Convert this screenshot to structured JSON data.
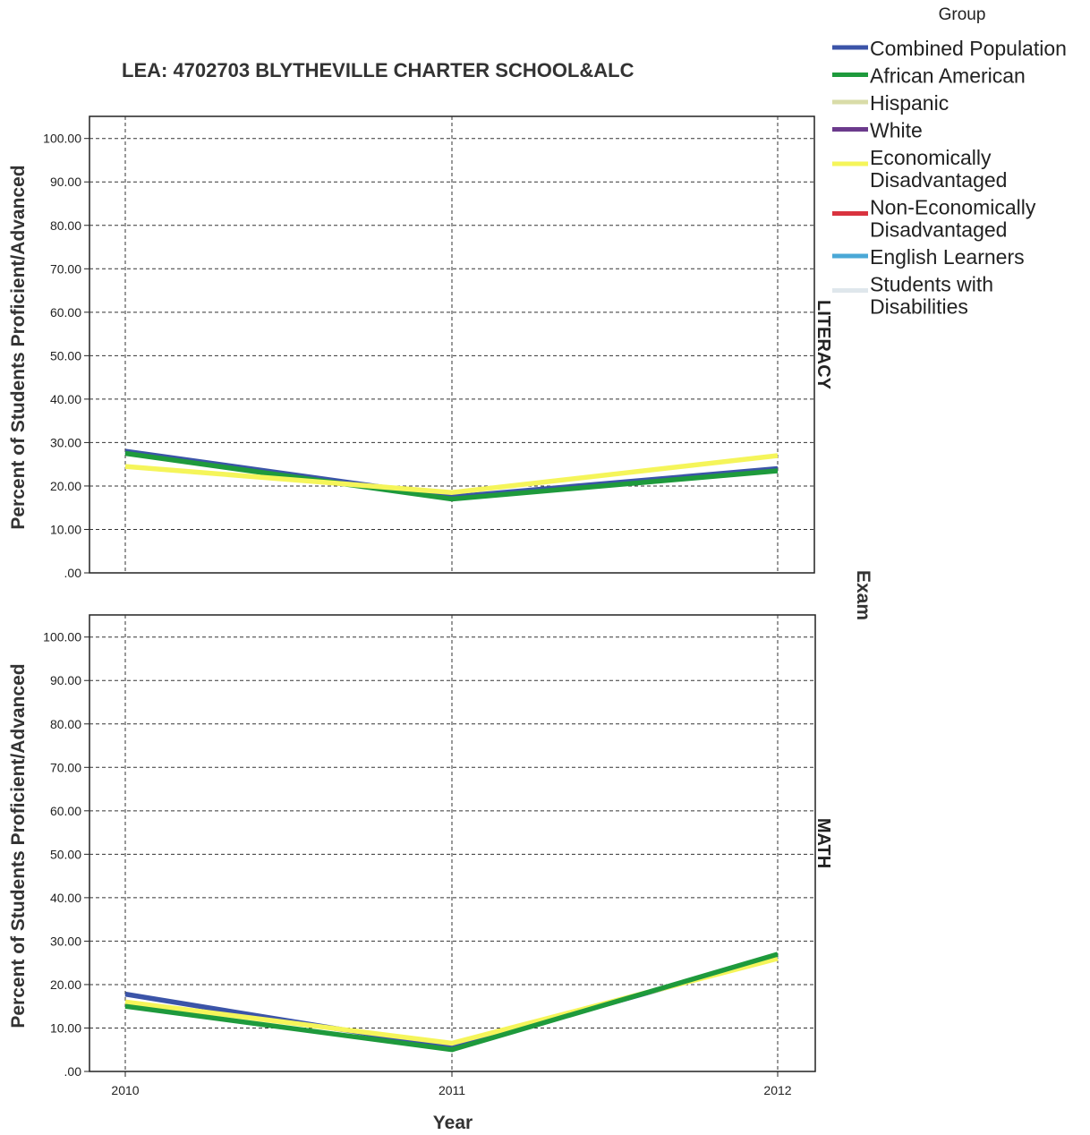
{
  "chart_data": {
    "type": "line",
    "title": "LEA: 4702703 BLYTHEVILLE CHARTER SCHOOL&ALC",
    "xlabel": "Year",
    "ylabel": "Percent of Students Proficient/Advanced",
    "facet_label": "Exam",
    "x": [
      "2010",
      "2011",
      "2012"
    ],
    "ylim": [
      0,
      100
    ],
    "yticks": [
      ".00",
      "10.00",
      "20.00",
      "30.00",
      "40.00",
      "50.00",
      "60.00",
      "70.00",
      "80.00",
      "90.00",
      "100.00"
    ],
    "grid": true,
    "legend_title": "Group",
    "legend_position": "top-right",
    "legend": [
      {
        "label": "Combined Population",
        "color": "#3b54a8"
      },
      {
        "label": "African American",
        "color": "#1e9a3c"
      },
      {
        "label": "Hispanic",
        "color": "#d9dca8"
      },
      {
        "label": "White",
        "color": "#6b3a8c"
      },
      {
        "label": "Economically Disadvantaged",
        "lines": [
          "Economically",
          "Disadvantaged"
        ],
        "color": "#f5f55a"
      },
      {
        "label": "Non-Economically Disadvantaged",
        "lines": [
          "Non-Economically",
          "Disadvantaged"
        ],
        "color": "#d9333f"
      },
      {
        "label": "English Learners",
        "color": "#4aa8d6"
      },
      {
        "label": "Students with Disabilities",
        "lines": [
          "Students with",
          "Disabilities"
        ],
        "color": "#dfe7ec"
      }
    ],
    "panels": [
      {
        "label": "LITERACY",
        "series": [
          {
            "name": "Combined Population",
            "color": "#3b54a8",
            "values": [
              28,
              17.5,
              24
            ]
          },
          {
            "name": "African American",
            "color": "#1e9a3c",
            "values": [
              27.5,
              17,
              23.5
            ]
          },
          {
            "name": "Economically Disadvantaged",
            "color": "#f5f55a",
            "values": [
              24.5,
              18.5,
              27
            ]
          }
        ]
      },
      {
        "label": "MATH",
        "series": [
          {
            "name": "Combined Population",
            "color": "#3b54a8",
            "values": [
              17.8,
              5.5,
              26.5
            ]
          },
          {
            "name": "Economically Disadvantaged",
            "color": "#f5f55a",
            "values": [
              16,
              6.5,
              26
            ]
          },
          {
            "name": "African American",
            "color": "#1e9a3c",
            "values": [
              15,
              5,
              27
            ]
          }
        ]
      }
    ]
  }
}
